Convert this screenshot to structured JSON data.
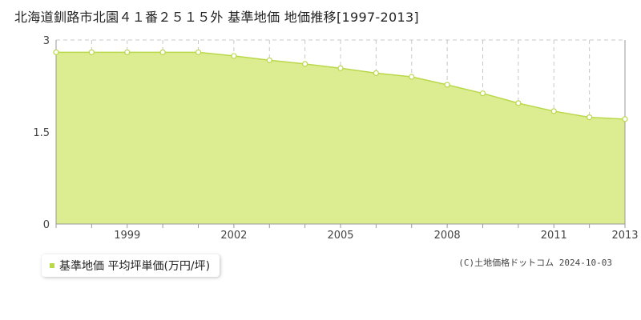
{
  "title": "北海道釧路市北園４１番２５１５外 基準地価 地価推移[1997-2013]",
  "legend_label": "基準地価 平均坪単価(万円/坪)",
  "copyright": "(C)土地価格ドットコム 2024-10-03",
  "colors": {
    "area": "#dcec90",
    "line": "#b9d84a",
    "grid": "#c8c8c8",
    "axis": "#999999"
  },
  "chart_data": {
    "type": "area",
    "x": [
      1997,
      1998,
      1999,
      2000,
      2001,
      2002,
      2003,
      2004,
      2005,
      2006,
      2007,
      2008,
      2009,
      2010,
      2011,
      2012,
      2013
    ],
    "series": [
      {
        "name": "基準地価 平均坪単価(万円/坪)",
        "values": [
          2.8,
          2.8,
          2.8,
          2.8,
          2.8,
          2.74,
          2.67,
          2.61,
          2.54,
          2.46,
          2.4,
          2.27,
          2.13,
          1.97,
          1.84,
          1.74,
          1.71
        ]
      }
    ],
    "xlim": [
      1997,
      2013
    ],
    "ylim": [
      0,
      3
    ],
    "x_tick_labels": [
      "1999",
      "2002",
      "2005",
      "2008",
      "2011",
      "2013"
    ],
    "y_tick_labels": [
      "0",
      "1.5",
      "3"
    ],
    "grid": true
  }
}
